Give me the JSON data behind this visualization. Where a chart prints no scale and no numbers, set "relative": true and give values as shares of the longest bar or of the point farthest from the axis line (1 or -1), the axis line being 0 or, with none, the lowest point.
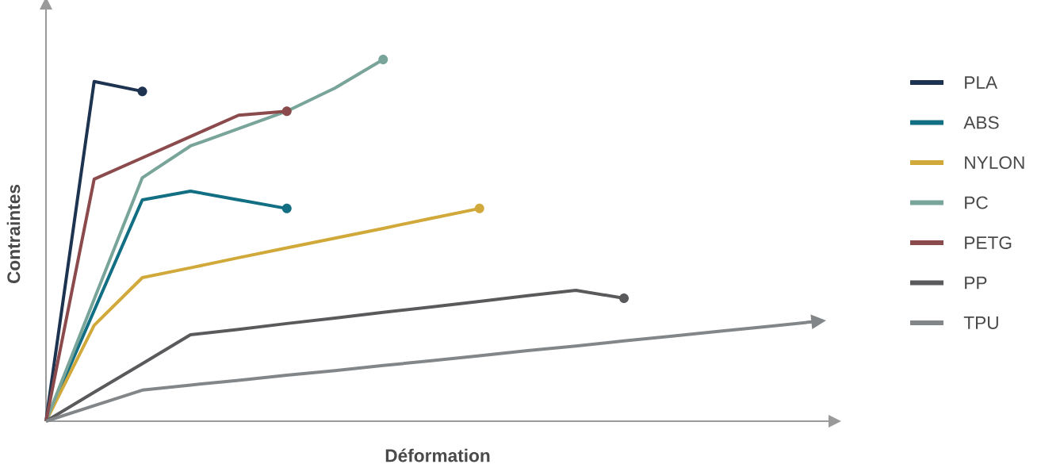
{
  "chart_data": {
    "type": "line",
    "relative": true,
    "xlabel": "Déformation",
    "ylabel": "Contraintes",
    "legend": "right",
    "categories": [
      null,
      null,
      null,
      null,
      null,
      null,
      null,
      null,
      null,
      null,
      null,
      null,
      null,
      null,
      null,
      null,
      null
    ],
    "series": [
      {
        "name": "PLA",
        "color": "#1d3350",
        "values": [
          0,
          0.939,
          0.912,
          null,
          null,
          null,
          null,
          null,
          null,
          null,
          null,
          null,
          null,
          null,
          null,
          null,
          null
        ]
      },
      {
        "name": "ABS",
        "color": "#126e82",
        "values": [
          0,
          0.306,
          0.612,
          0.636,
          0.612,
          0.588,
          null,
          null,
          null,
          null,
          null,
          null,
          null,
          null,
          null,
          null,
          null
        ]
      },
      {
        "name": "NYLON",
        "color": "#d1a83a",
        "values": [
          0,
          0.265,
          0.397,
          0.424,
          0.452,
          0.479,
          0.506,
          0.533,
          0.561,
          0.588,
          null,
          null,
          null,
          null,
          null,
          null,
          null
        ]
      },
      {
        "name": "PC",
        "color": "#78a49a",
        "values": [
          0,
          0.337,
          0.673,
          0.761,
          0.809,
          0.857,
          0.921,
          1,
          null,
          null,
          null,
          null,
          null,
          null,
          null,
          null,
          null
        ]
      },
      {
        "name": "PETG",
        "color": "#8b4a4c",
        "values": [
          0,
          0.669,
          0.728,
          0.787,
          0.846,
          0.857,
          null,
          null,
          null,
          null,
          null,
          null,
          null,
          null,
          null,
          null,
          null
        ]
      },
      {
        "name": "PP",
        "color": "#5a5a5c",
        "values": [
          0,
          0.08,
          0.159,
          0.239,
          0.254,
          0.27,
          0.285,
          0.301,
          0.316,
          0.331,
          0.347,
          0.362,
          0.34,
          null,
          null,
          null,
          null
        ]
      },
      {
        "name": "TPU",
        "color": "#838688",
        "values": [
          0,
          0.043,
          0.086,
          0.1,
          0.113,
          0.127,
          0.14,
          0.154,
          0.167,
          0.181,
          0.195,
          0.208,
          0.222,
          0.235,
          0.249,
          0.262,
          0.276
        ]
      }
    ]
  }
}
